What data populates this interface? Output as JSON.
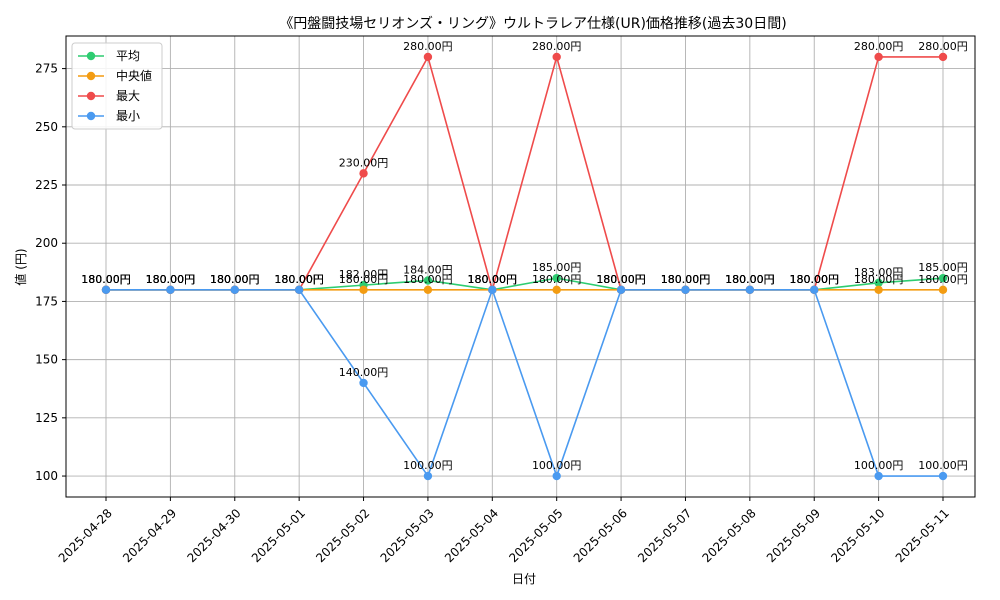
{
  "chart_data": {
    "type": "line",
    "title": "《円盤闘技場セリオンズ・リング》ウルトラレア仕様(UR)価格推移(過去30日間)",
    "xlabel": "日付",
    "ylabel": "値 (円)",
    "ylim": [
      91,
      289
    ],
    "yticks": [
      100,
      125,
      150,
      175,
      200,
      225,
      250,
      275
    ],
    "grid": true,
    "legend_position": "top-left",
    "categories": [
      "2025-04-28",
      "2025-04-29",
      "2025-04-30",
      "2025-05-01",
      "2025-05-02",
      "2025-05-03",
      "2025-05-04",
      "2025-05-05",
      "2025-05-06",
      "2025-05-07",
      "2025-05-08",
      "2025-05-09",
      "2025-05-10",
      "2025-05-11"
    ],
    "series": [
      {
        "name": "平均",
        "color": "#2ecc71",
        "values": [
          180,
          180,
          180,
          180,
          182,
          184,
          180,
          185,
          180,
          180,
          180,
          180,
          183,
          185
        ],
        "labels": [
          "180.00円",
          "180.00円",
          "180.00円",
          "180.00円",
          "182.00円",
          "184.00円",
          "180.00円",
          "185.00円",
          "180.00円",
          "180.00円",
          "180.00円",
          "180.00円",
          "183.00円",
          "185.00円"
        ]
      },
      {
        "name": "中央値",
        "color": "#f39c12",
        "values": [
          180,
          180,
          180,
          180,
          180,
          180,
          180,
          180,
          180,
          180,
          180,
          180,
          180,
          180
        ],
        "labels": [
          "180.00円",
          "180.00円",
          "180.00円",
          "180.00円",
          "180.00円",
          "180.00円",
          "180.00円",
          "180.00円",
          "180.00円",
          "180.00円",
          "180.00円",
          "180.00円",
          "180.00円",
          "180.00円"
        ]
      },
      {
        "name": "最大",
        "color": "#ef4b4b",
        "values": [
          180,
          180,
          180,
          180,
          230,
          280,
          180,
          280,
          180,
          180,
          180,
          180,
          280,
          280
        ],
        "labels": [
          "180.00円",
          "180.00円",
          "180.00円",
          "180.00円",
          "230.00円",
          "280.00円",
          "180.00円",
          "280.00円",
          "180.00円",
          "180.00円",
          "180.00円",
          "180.00円",
          "280.00円",
          "280.00円"
        ]
      },
      {
        "name": "最小",
        "color": "#4a9af0",
        "values": [
          180,
          180,
          180,
          180,
          140,
          100,
          180,
          100,
          180,
          180,
          180,
          180,
          100,
          100
        ],
        "labels": [
          "180.00円",
          "180.00円",
          "180.00円",
          "180.00円",
          "140.00円",
          "100.00円",
          "180.00円",
          "100.00円",
          "180.00円",
          "180.00円",
          "180.00円",
          "180.00円",
          "100.00円",
          "100.00円"
        ]
      }
    ]
  }
}
